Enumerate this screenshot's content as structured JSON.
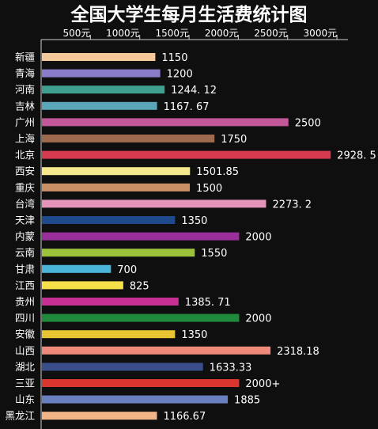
{
  "chart_data": {
    "type": "bar",
    "orientation": "horizontal",
    "title": "全国大学生每月生活费统计图",
    "xlim": [
      0,
      3000
    ],
    "ticks": [
      {
        "value": 500,
        "label": "500元"
      },
      {
        "value": 1000,
        "label": "1000元"
      },
      {
        "value": 1500,
        "label": "1500元"
      },
      {
        "value": 2000,
        "label": "2000元"
      },
      {
        "value": 2500,
        "label": "2500元"
      },
      {
        "value": 3000,
        "label": "3000元"
      }
    ],
    "bars": [
      {
        "category": "新疆",
        "value": 1150,
        "label": "1150",
        "color": "#f5c89a"
      },
      {
        "category": "青海",
        "value": 1200,
        "label": "1200",
        "color": "#8b7cc9"
      },
      {
        "category": "河南",
        "value": 1244.12,
        "label": "1244. 12",
        "color": "#3fa08f"
      },
      {
        "category": "吉林",
        "value": 1167.67,
        "label": "1167. 67",
        "color": "#5aa6b8"
      },
      {
        "category": "广州",
        "value": 2500,
        "label": "2500",
        "color": "#c2579a"
      },
      {
        "category": "上海",
        "value": 1750,
        "label": "1750",
        "color": "#9e6a4f"
      },
      {
        "category": "北京",
        "value": 2928.5,
        "label": "2928. 5",
        "color": "#d63a4f"
      },
      {
        "category": "西安",
        "value": 1501.85,
        "label": "1501.85",
        "color": "#f5e88c"
      },
      {
        "category": "重庆",
        "value": 1500,
        "label": "1500",
        "color": "#c98f65"
      },
      {
        "category": "台湾",
        "value": 2273.2,
        "label": "2273. 2",
        "color": "#e394b8"
      },
      {
        "category": "天津",
        "value": 1350,
        "label": "1350",
        "color": "#1e4a8c"
      },
      {
        "category": "内蒙",
        "value": 2000,
        "label": "2000",
        "color": "#9b2f9a"
      },
      {
        "category": "云南",
        "value": 1550,
        "label": "1550",
        "color": "#9ac33b"
      },
      {
        "category": "甘肃",
        "value": 700,
        "label": "700",
        "color": "#4ab5d8"
      },
      {
        "category": "江西",
        "value": 825,
        "label": "825",
        "color": "#f5e04a"
      },
      {
        "category": "贵州",
        "value": 1385.71,
        "label": "1385. 71",
        "color": "#c62f94"
      },
      {
        "category": "四川",
        "value": 2000,
        "label": "2000",
        "color": "#1f8a3c"
      },
      {
        "category": "安徽",
        "value": 1350,
        "label": "1350",
        "color": "#e8c332"
      },
      {
        "category": "山西",
        "value": 2318.18,
        "label": "2318.18",
        "color": "#ef8a7a"
      },
      {
        "category": "湖北",
        "value": 1633.33,
        "label": "1633.33",
        "color": "#3a4e8c"
      },
      {
        "category": "三亚",
        "value": 2000,
        "label": "2000+",
        "color": "#d9362f"
      },
      {
        "category": "山东",
        "value": 1885,
        "label": "1885",
        "color": "#6a7fc0"
      },
      {
        "category": "黑龙江",
        "value": 1166.67,
        "label": "1166.67",
        "color": "#f0b486"
      }
    ]
  }
}
